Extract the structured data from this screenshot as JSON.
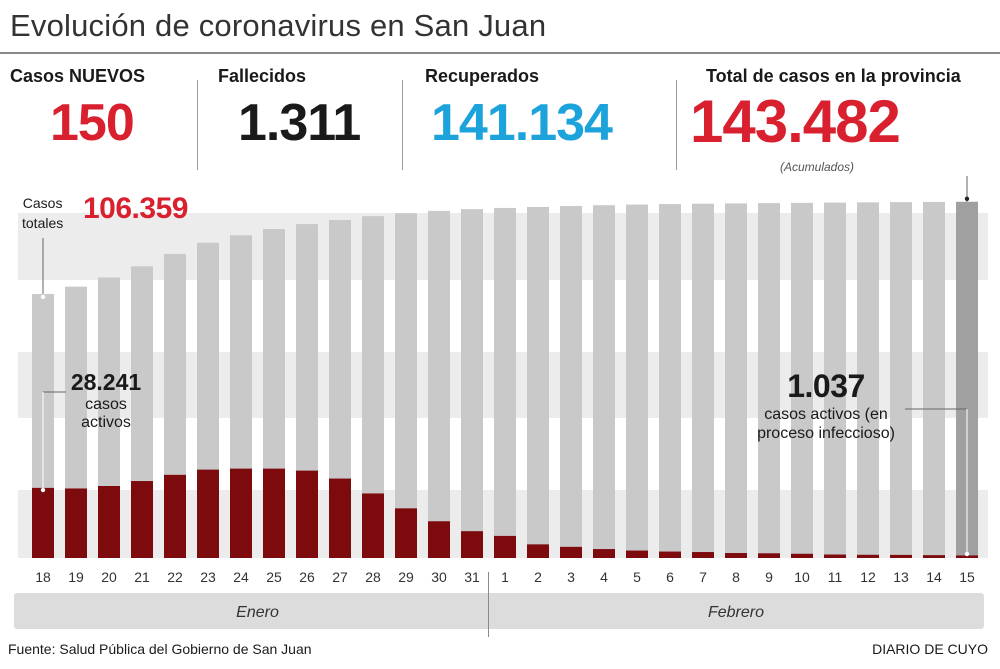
{
  "header": {
    "title": "Evolución de coronavirus en San Juan"
  },
  "stats": {
    "nuevos": {
      "label": "Casos NUEVOS",
      "value": "150"
    },
    "fallecidos": {
      "label": "Fallecidos",
      "value": "1.311"
    },
    "recuperados": {
      "label": "Recuperados",
      "value": "141.134"
    },
    "total": {
      "label": "Total de casos en la provincia",
      "value": "143.482",
      "note": "(Acumulados)"
    }
  },
  "colors": {
    "red": "#d8202f",
    "blue": "#1ca3dc",
    "dark_red": "#7d0b0e",
    "bar_gray": "#c9c9c9",
    "last_bar_gray": "#a0a0a0",
    "band_gray": "#ececec"
  },
  "annotations": {
    "start_total_label1": "Casos",
    "start_total_label2": "totales",
    "start_total_value": "106.359",
    "start_active_value": "28.241",
    "start_active_text1": "casos",
    "start_active_text2": "activos",
    "end_active_value": "1.037",
    "end_active_text1": "casos activos (en",
    "end_active_text2": "proceso infeccioso)"
  },
  "chart_data": {
    "type": "bar",
    "title": "Evolución de coronavirus en San Juan",
    "categories": [
      "18",
      "19",
      "20",
      "21",
      "22",
      "23",
      "24",
      "25",
      "26",
      "27",
      "28",
      "29",
      "30",
      "31",
      "1",
      "2",
      "3",
      "4",
      "5",
      "6",
      "7",
      "8",
      "9",
      "10",
      "11",
      "12",
      "13",
      "14",
      "15"
    ],
    "months": [
      {
        "name": "Enero",
        "from": 0,
        "to": 13
      },
      {
        "name": "Febrero",
        "from": 14,
        "to": 28
      }
    ],
    "ylim": [
      0,
      145000
    ],
    "series": [
      {
        "name": "Casos totales",
        "values": [
          106359,
          109300,
          113000,
          117500,
          122500,
          127000,
          130000,
          132500,
          134500,
          136100,
          137700,
          138900,
          139800,
          140500,
          141000,
          141400,
          141800,
          142100,
          142350,
          142550,
          142700,
          142830,
          142950,
          143050,
          143150,
          143250,
          143330,
          143410,
          143482
        ]
      },
      {
        "name": "Casos activos",
        "values": [
          28241,
          28000,
          29000,
          31000,
          33500,
          35600,
          36000,
          36000,
          35200,
          32000,
          26000,
          20000,
          14800,
          10800,
          8900,
          5500,
          4500,
          3600,
          3000,
          2600,
          2400,
          2000,
          1900,
          1700,
          1400,
          1300,
          1250,
          1150,
          1037
        ]
      }
    ]
  },
  "footer": {
    "source": "Fuente: Salud Pública del Gobierno de San Juan",
    "brand": "DIARIO DE CUYO"
  }
}
